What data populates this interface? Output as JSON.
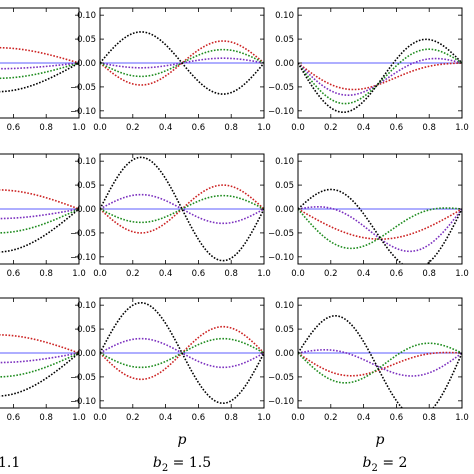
{
  "chart_data": {
    "type": "line",
    "x_axis": {
      "ticks": [
        0.0,
        0.2,
        0.4,
        0.6,
        0.8,
        1.0
      ],
      "tick_labels": [
        "0.0",
        "0.2",
        "0.4",
        "0.6",
        "0.8",
        "1.0"
      ],
      "label": "p",
      "xlim": [
        0.0,
        1.0
      ]
    },
    "y_axis": {
      "ticks": [
        -0.1,
        -0.05,
        0.0,
        0.05,
        0.1
      ],
      "tick_labels": [
        "−0.10",
        "−0.05",
        "0.00",
        "0.05",
        "0.10"
      ],
      "ylim": [
        -0.115,
        0.115
      ]
    },
    "column_captions": [
      {
        "text": "1.1"
      },
      {
        "var": "b",
        "sub": "2",
        "rest": " = 1.5"
      },
      {
        "var": "b",
        "sub": "2",
        "rest": " = 2"
      }
    ],
    "series_colors": [
      "#1a1aff",
      "#cc2222",
      "#7b2fbf",
      "#1e8c1e",
      "#000000"
    ],
    "line_style": "dotted",
    "grid": false,
    "panels": [
      {
        "row": 0,
        "col": 0,
        "partial": true,
        "series": [
          {
            "shape": "flat",
            "a": 0.0
          },
          {
            "shape": "sym",
            "a": 0.032
          },
          {
            "shape": "sym",
            "a": -0.012
          },
          {
            "shape": "sym",
            "a": -0.032
          },
          {
            "shape": "sym",
            "a": -0.06
          }
        ]
      },
      {
        "row": 0,
        "col": 1,
        "series": [
          {
            "shape": "flat",
            "a": 0.0
          },
          {
            "shape": "anti",
            "a": -0.046
          },
          {
            "shape": "anti",
            "a": -0.01
          },
          {
            "shape": "anti",
            "a": -0.028
          },
          {
            "shape": "anti",
            "a": 0.065
          }
        ]
      },
      {
        "row": 0,
        "col": 2,
        "series": [
          {
            "shape": "flat",
            "a": 0.0
          },
          {
            "shape": "comb",
            "a": -0.02,
            "b": -0.044
          },
          {
            "shape": "comb",
            "a": -0.035,
            "b": -0.042
          },
          {
            "shape": "comb",
            "a": -0.055,
            "b": -0.04
          },
          {
            "shape": "comb",
            "a": -0.075,
            "b": -0.038
          }
        ]
      },
      {
        "row": 1,
        "col": 0,
        "partial": true,
        "series": [
          {
            "shape": "flat",
            "a": 0.0
          },
          {
            "shape": "sym",
            "a": 0.04
          },
          {
            "shape": "sym",
            "a": -0.02
          },
          {
            "shape": "sym",
            "a": -0.05
          },
          {
            "shape": "sym",
            "a": -0.09
          }
        ]
      },
      {
        "row": 1,
        "col": 1,
        "series": [
          {
            "shape": "flat",
            "a": 0.0
          },
          {
            "shape": "anti",
            "a": -0.05
          },
          {
            "shape": "anti",
            "a": 0.03
          },
          {
            "shape": "anti",
            "a": -0.028
          },
          {
            "shape": "anti",
            "a": 0.108
          }
        ]
      },
      {
        "row": 1,
        "col": 2,
        "series": [
          {
            "shape": "flat",
            "a": 0.0
          },
          {
            "shape": "comb",
            "a": 0.0,
            "b": -0.063
          },
          {
            "shape": "comb",
            "a": 0.04,
            "b": -0.062
          },
          {
            "shape": "comb",
            "a": -0.035,
            "b": -0.06
          },
          {
            "shape": "comb",
            "a": 0.08,
            "b": -0.06
          }
        ]
      },
      {
        "row": 2,
        "col": 0,
        "partial": true,
        "series": [
          {
            "shape": "flat",
            "a": 0.0
          },
          {
            "shape": "sym",
            "a": 0.038
          },
          {
            "shape": "sym",
            "a": -0.02
          },
          {
            "shape": "sym",
            "a": -0.05
          },
          {
            "shape": "sym",
            "a": -0.09
          }
        ]
      },
      {
        "row": 2,
        "col": 1,
        "series": [
          {
            "shape": "flat",
            "a": 0.0
          },
          {
            "shape": "anti",
            "a": -0.055
          },
          {
            "shape": "anti",
            "a": 0.03
          },
          {
            "shape": "anti",
            "a": -0.03
          },
          {
            "shape": "anti",
            "a": 0.105
          }
        ]
      },
      {
        "row": 2,
        "col": 2,
        "series": [
          {
            "shape": "flat",
            "a": 0.0
          },
          {
            "shape": "comb",
            "a": -0.02,
            "b": -0.035
          },
          {
            "shape": "comb",
            "a": 0.025,
            "b": -0.03
          },
          {
            "shape": "comb",
            "a": -0.04,
            "b": -0.03
          },
          {
            "shape": "comb",
            "a": 0.105,
            "b": -0.04
          }
        ]
      }
    ]
  }
}
